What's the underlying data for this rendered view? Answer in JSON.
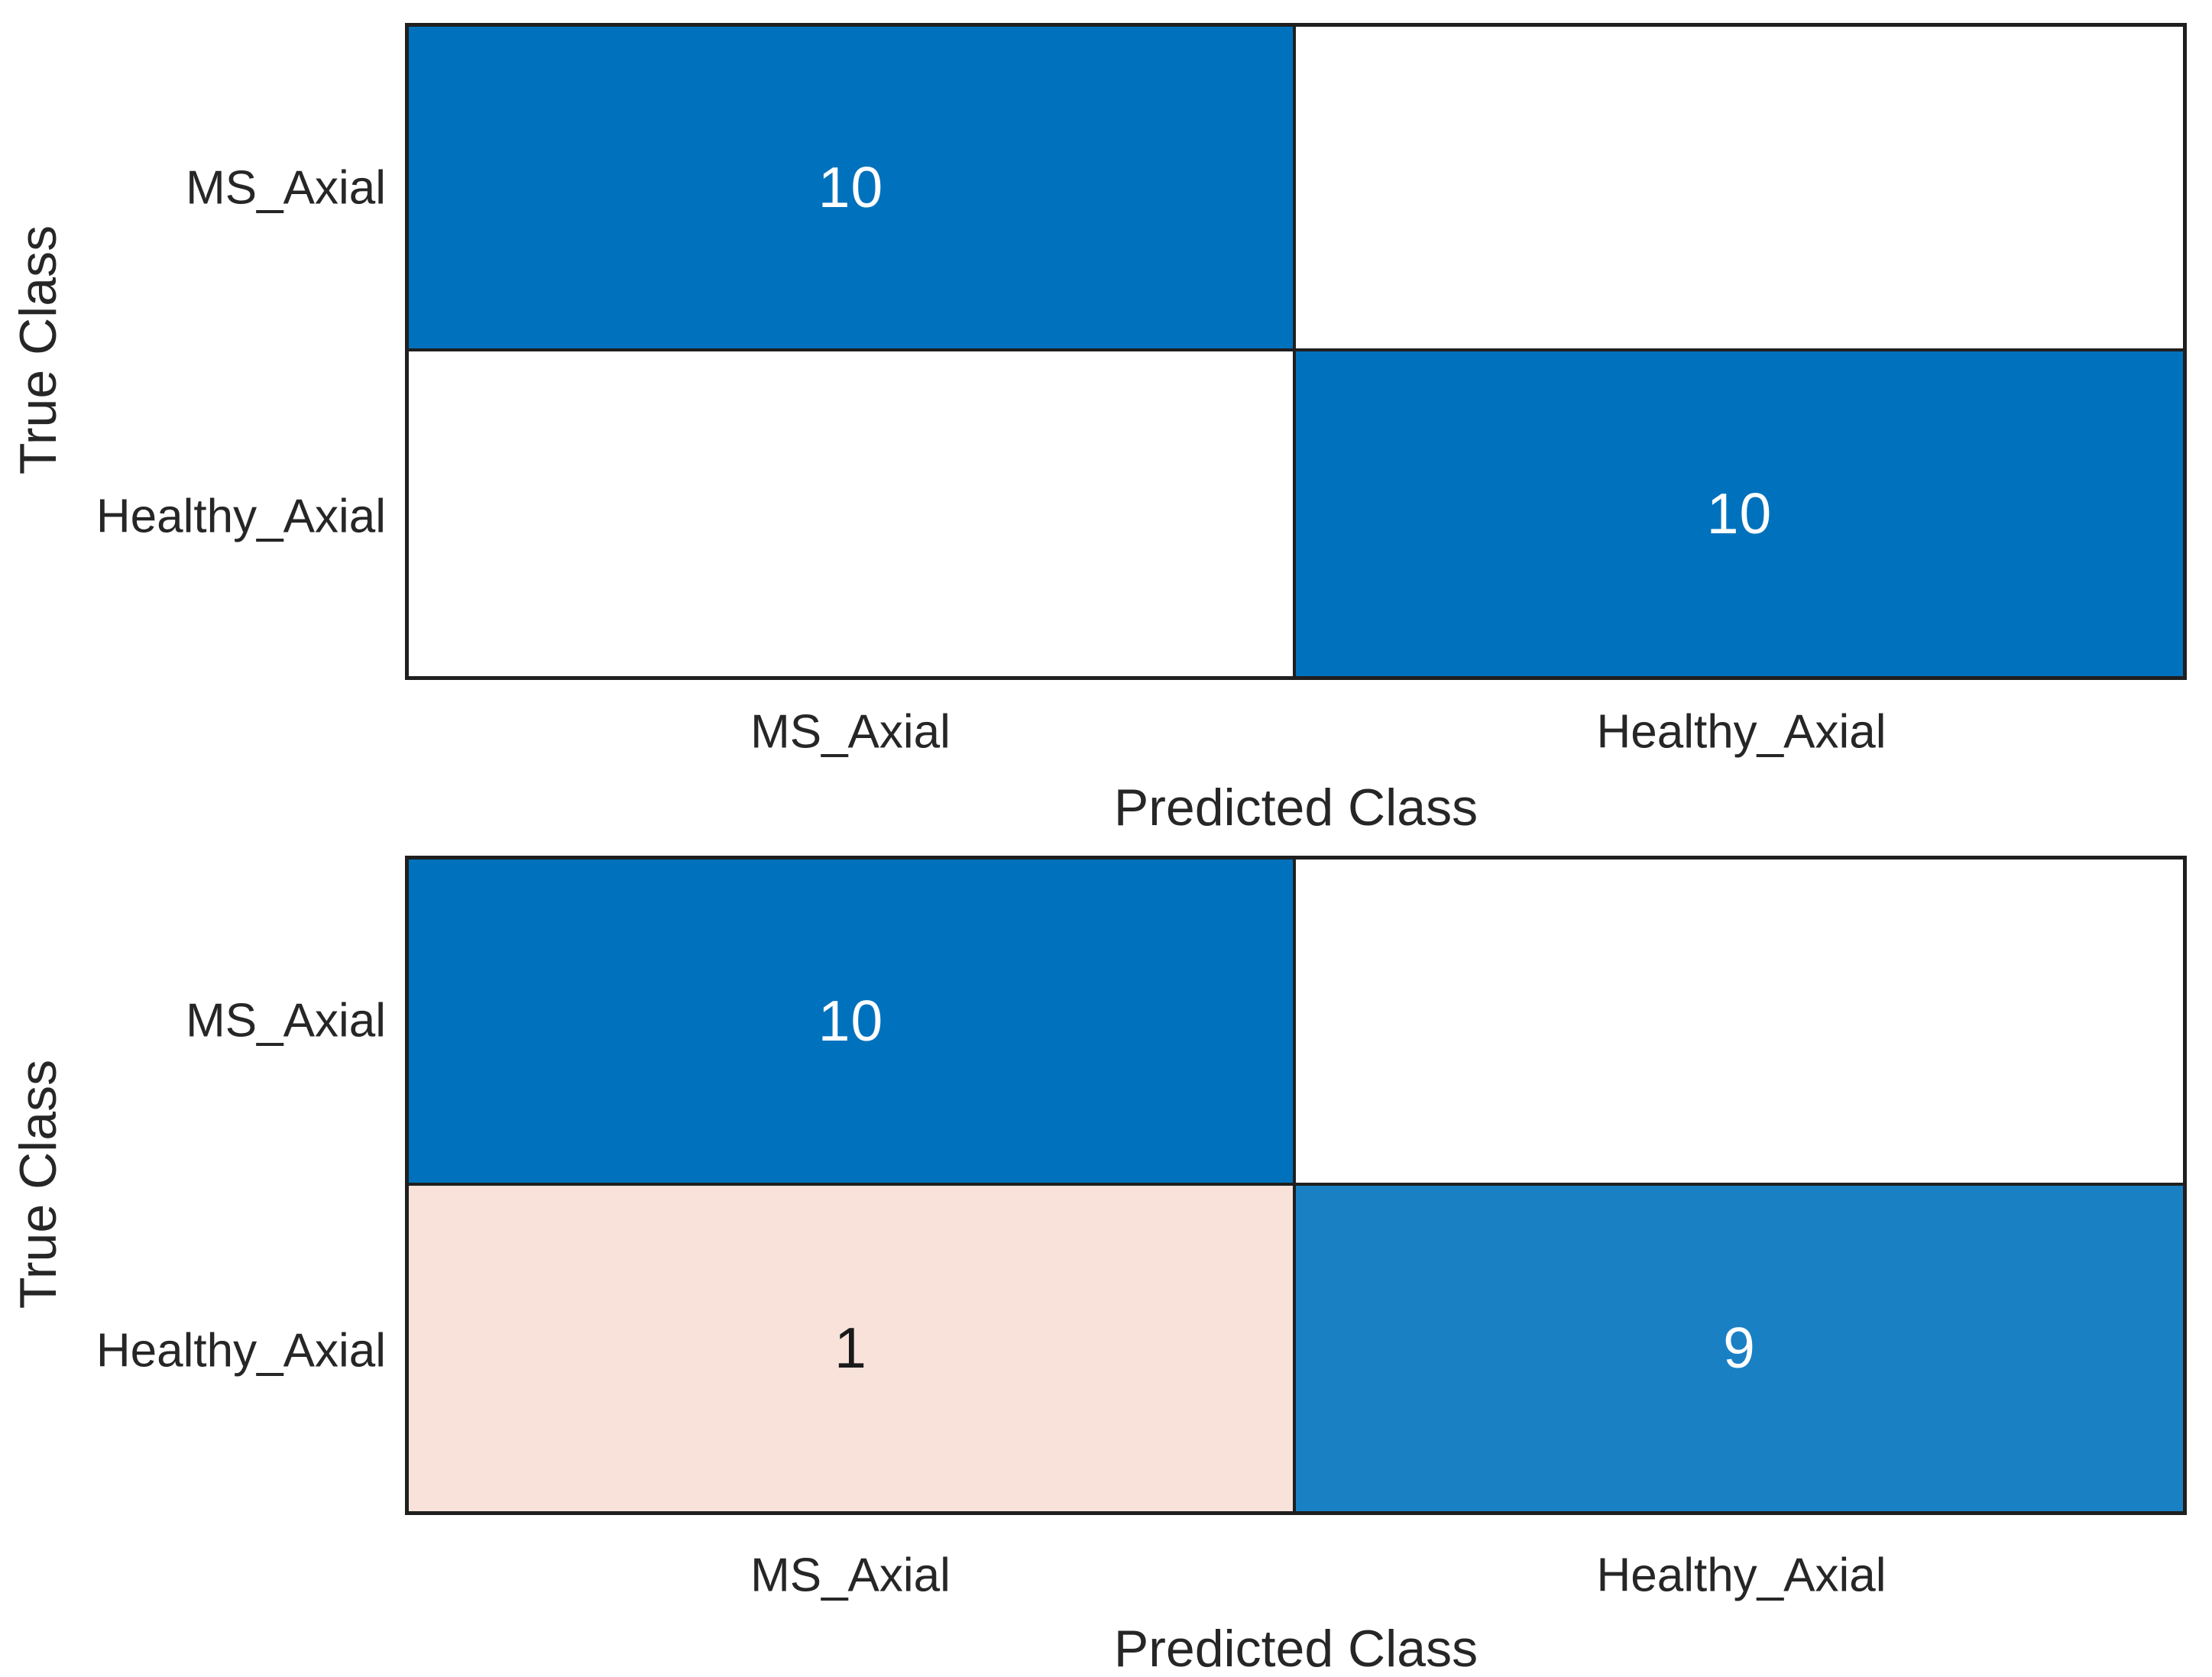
{
  "colors": {
    "diagonal_blue_full": "#0072BD",
    "diagonal_blue_light": "#1A80C4",
    "off_diagonal_peach": "#F8E2D9",
    "empty_cell_white": "#FFFFFF",
    "grid_line": "#1F1F1F",
    "label_text": "#262626",
    "cell_text_on_dark": "#FFFFFF",
    "cell_text_on_light": "#1A1A1A"
  },
  "charts": [
    {
      "y_axis_label": "True Class",
      "x_axis_label": "Predicted Class",
      "row_tick_labels": [
        "MS_Axial",
        "Healthy_Axial"
      ],
      "col_tick_labels": [
        "MS_Axial",
        "Healthy_Axial"
      ],
      "cells": [
        {
          "row": "MS_Axial",
          "col": "MS_Axial",
          "value": "10",
          "bg": "#0072BD",
          "fg": "#FFFFFF"
        },
        {
          "row": "MS_Axial",
          "col": "Healthy_Axial",
          "value": "",
          "bg": "#FFFFFF",
          "fg": "#1A1A1A"
        },
        {
          "row": "Healthy_Axial",
          "col": "MS_Axial",
          "value": "",
          "bg": "#FFFFFF",
          "fg": "#1A1A1A"
        },
        {
          "row": "Healthy_Axial",
          "col": "Healthy_Axial",
          "value": "10",
          "bg": "#0072BD",
          "fg": "#FFFFFF"
        }
      ]
    },
    {
      "y_axis_label": "True Class",
      "x_axis_label": "Predicted Class",
      "row_tick_labels": [
        "MS_Axial",
        "Healthy_Axial"
      ],
      "col_tick_labels": [
        "MS_Axial",
        "Healthy_Axial"
      ],
      "cells": [
        {
          "row": "MS_Axial",
          "col": "MS_Axial",
          "value": "10",
          "bg": "#0072BD",
          "fg": "#FFFFFF"
        },
        {
          "row": "MS_Axial",
          "col": "Healthy_Axial",
          "value": "",
          "bg": "#FFFFFF",
          "fg": "#1A1A1A"
        },
        {
          "row": "Healthy_Axial",
          "col": "MS_Axial",
          "value": "1",
          "bg": "#F8E2D9",
          "fg": "#1A1A1A"
        },
        {
          "row": "Healthy_Axial",
          "col": "Healthy_Axial",
          "value": "9",
          "bg": "#1A80C4",
          "fg": "#FFFFFF"
        }
      ]
    }
  ],
  "chart_data": [
    {
      "type": "heatmap",
      "subtype": "confusion-matrix",
      "title": "",
      "xlabel": "Predicted Class",
      "ylabel": "True Class",
      "x_categories": [
        "MS_Axial",
        "Healthy_Axial"
      ],
      "y_categories": [
        "MS_Axial",
        "Healthy_Axial"
      ],
      "matrix": [
        [
          10,
          0
        ],
        [
          0,
          10
        ]
      ],
      "displayed_cell_labels": [
        [
          "10",
          ""
        ],
        [
          "",
          "10"
        ]
      ],
      "grid": true,
      "legend": false
    },
    {
      "type": "heatmap",
      "subtype": "confusion-matrix",
      "title": "",
      "xlabel": "Predicted Class",
      "ylabel": "True Class",
      "x_categories": [
        "MS_Axial",
        "Healthy_Axial"
      ],
      "y_categories": [
        "MS_Axial",
        "Healthy_Axial"
      ],
      "matrix": [
        [
          10,
          0
        ],
        [
          1,
          9
        ]
      ],
      "displayed_cell_labels": [
        [
          "10",
          ""
        ],
        [
          "1",
          "9"
        ]
      ],
      "grid": true,
      "legend": false
    }
  ]
}
